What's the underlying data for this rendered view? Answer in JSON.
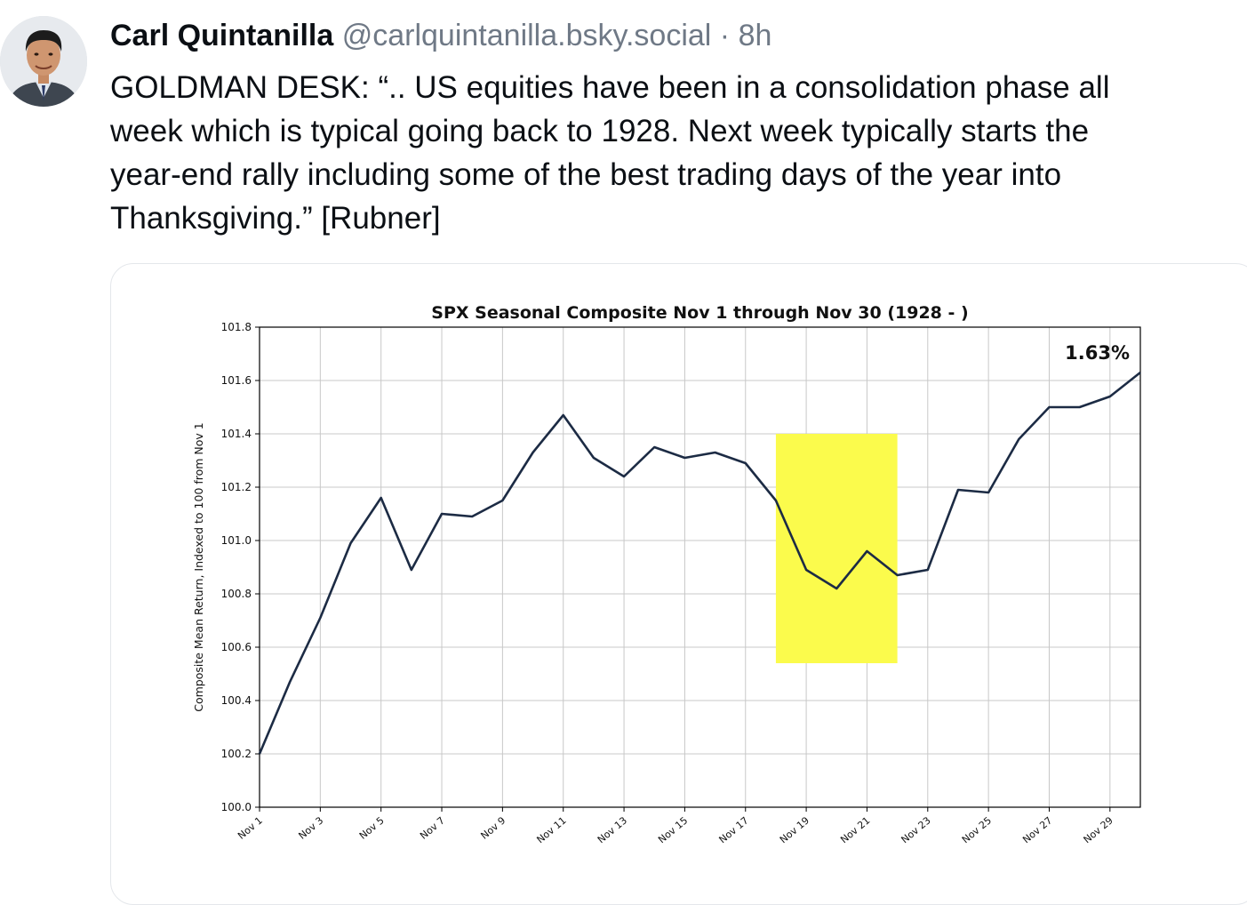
{
  "post": {
    "author_name": "Carl Quintanilla",
    "handle": "@carlquintanilla.bsky.social",
    "separator": "·",
    "time": "8h",
    "text_lines": [
      "GOLDMAN DESK: “.. US equities have been in a consolidation phase all",
      "week which is typical going back to 1928. Next week typically starts the",
      "year-end rally including some of the best trading days of the year into",
      "Thanksgiving.” [Rubner]"
    ]
  },
  "colors": {
    "line": "#1c2b44",
    "highlight": "#fbfb4c",
    "grid": "#c8c8c8",
    "text_muted": "#6f7986"
  },
  "chart_data": {
    "type": "line",
    "title": "SPX Seasonal Composite Nov 1 through Nov 30 (1928 - )",
    "ylabel": "Composite Mean Return, Indexed to 100 from Nov 1",
    "xlabel": "",
    "annotation": "1.63%",
    "ylim": [
      100.0,
      101.8
    ],
    "yticks": [
      "100.0",
      "100.2",
      "100.4",
      "100.6",
      "100.8",
      "101.0",
      "101.2",
      "101.4",
      "101.6",
      "101.8"
    ],
    "xticks": [
      "Nov 1",
      "Nov 3",
      "Nov 5",
      "Nov 7",
      "Nov 9",
      "Nov 11",
      "Nov 13",
      "Nov 15",
      "Nov 17",
      "Nov 19",
      "Nov 21",
      "Nov 23",
      "Nov 25",
      "Nov 27",
      "Nov 29"
    ],
    "x": [
      1,
      2,
      3,
      4,
      5,
      6,
      7,
      8,
      9,
      10,
      11,
      12,
      13,
      14,
      15,
      16,
      17,
      18,
      19,
      20,
      21,
      22,
      23,
      24,
      25,
      26,
      27,
      28,
      29,
      30
    ],
    "values": [
      100.2,
      100.47,
      100.71,
      100.99,
      101.16,
      100.89,
      101.1,
      101.09,
      101.15,
      101.33,
      101.47,
      101.31,
      101.24,
      101.35,
      101.31,
      101.33,
      101.29,
      101.15,
      100.89,
      100.82,
      100.96,
      100.87,
      100.89,
      101.19,
      101.18,
      101.38,
      101.5,
      101.5,
      101.54,
      101.63
    ],
    "highlight": {
      "x_range": [
        18,
        22
      ],
      "y_range": [
        100.54,
        101.4
      ]
    },
    "grid": true
  }
}
